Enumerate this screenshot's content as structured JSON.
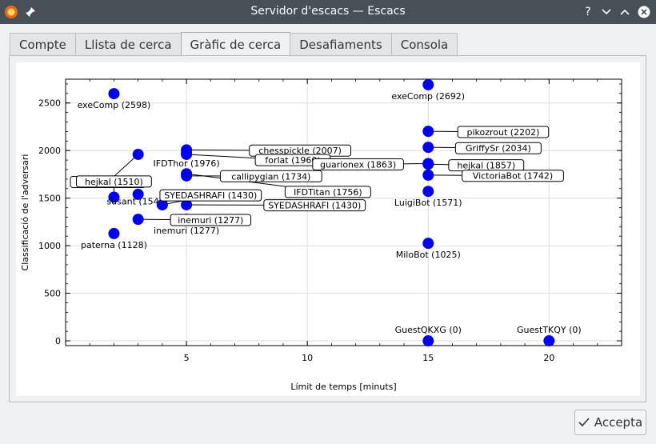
{
  "window": {
    "title": "Servidor d'escacs — Escacs",
    "app_icon": "firefox-style-app-icon",
    "pin_icon": "pin-icon",
    "help_label": "?",
    "minimize_glyph": "⌄",
    "maximize_glyph": "⌃",
    "close_glyph": "✕"
  },
  "tabs": [
    {
      "label": "Compte",
      "active": false
    },
    {
      "label": "Llista de cerca",
      "active": false
    },
    {
      "label": "Gràfic de cerca",
      "active": true
    },
    {
      "label": "Desafiaments",
      "active": false
    },
    {
      "label": "Consola",
      "active": false
    }
  ],
  "chart_data": {
    "type": "scatter",
    "xlabel": "Límit de temps [minuts]",
    "ylabel": "Classificació de l'adversari",
    "xlim": [
      0,
      23
    ],
    "ylim": [
      -50,
      2750
    ],
    "xticks": [
      5,
      10,
      15,
      20
    ],
    "yticks": [
      0,
      500,
      1000,
      1500,
      2000,
      2500
    ],
    "grid": true,
    "point_color": "#0000ee",
    "points": [
      {
        "name": "exeComp (2598)",
        "x": 2,
        "y": 2598,
        "label_mode": "plain",
        "label_pos": "below"
      },
      {
        "name": "forlat (1960)",
        "x": 3,
        "y": 1960,
        "label_mode": "box",
        "lx": 1.75,
        "ly": 1670
      },
      {
        "name": "hejkal (1510)",
        "x": 2,
        "y": 1510,
        "label_mode": "box",
        "lx": 2,
        "ly": 1675
      },
      {
        "name": "susant (1540)",
        "x": 3,
        "y": 1540,
        "label_mode": "plain_clip",
        "lx": 2,
        "ly": 1435
      },
      {
        "name": "paterna (1128)",
        "x": 2,
        "y": 1128,
        "label_mode": "plain",
        "label_pos": "below"
      },
      {
        "name": "SYEDASHRAFI (1430)",
        "x": 4,
        "y": 1430,
        "label_mode": "box",
        "lx": 6,
        "ly": 1530
      },
      {
        "name": "inemuri (1277)",
        "x": 3,
        "y": 1277,
        "label_mode": "box",
        "lx": 6,
        "ly": 1270
      },
      {
        "name": "chesspickle (2007)",
        "x": 5,
        "y": 2007,
        "label_mode": "box",
        "lx": 9.7,
        "ly": 2000
      },
      {
        "name": "forlat (1960)",
        "x": 5,
        "y": 1960,
        "label_mode": "box",
        "lx": 9.4,
        "ly": 1900
      },
      {
        "name": "IFDThor (1976)",
        "x": 5,
        "y": 1976,
        "label_mode": "plain",
        "lx": 5,
        "ly": 1835
      },
      {
        "name": "callipygian (1734)",
        "x": 5,
        "y": 1734,
        "label_mode": "box",
        "lx": 8.5,
        "ly": 1730
      },
      {
        "name": "IFDTitan (1756)",
        "x": 5,
        "y": 1756,
        "label_mode": "box",
        "lx": 10.85,
        "ly": 1565
      },
      {
        "name": "SYEDASHRAFI (1430)",
        "x": 5,
        "y": 1430,
        "label_mode": "box",
        "lx": 10.3,
        "ly": 1425
      },
      {
        "name": "inemuri (1277)",
        "x": 5,
        "y": 1277,
        "label_mode": "plain",
        "label_pos": "below"
      },
      {
        "name": "exeComp (2692)",
        "x": 15,
        "y": 2692,
        "label_mode": "plain",
        "label_pos": "below"
      },
      {
        "name": "pikozrout (2202)",
        "x": 15,
        "y": 2202,
        "label_mode": "box",
        "lx": 18.1,
        "ly": 2195
      },
      {
        "name": "GriffySr (2034)",
        "x": 15,
        "y": 2034,
        "label_mode": "box",
        "lx": 17.9,
        "ly": 2025
      },
      {
        "name": "guarionex (1863)",
        "x": 15,
        "y": 1863,
        "label_mode": "box",
        "lx": 12.1,
        "ly": 1855
      },
      {
        "name": "hejkal (1857)",
        "x": 15,
        "y": 1857,
        "label_mode": "box",
        "lx": 17.4,
        "ly": 1845
      },
      {
        "name": "VictoriaBot (1742)",
        "x": 15,
        "y": 1742,
        "label_mode": "box",
        "lx": 18.5,
        "ly": 1735
      },
      {
        "name": "LuigiBot (1571)",
        "x": 15,
        "y": 1571,
        "label_mode": "plain",
        "label_pos": "below"
      },
      {
        "name": "MiloBot (1025)",
        "x": 15,
        "y": 1025,
        "label_mode": "plain",
        "label_pos": "below"
      },
      {
        "name": "GuestQKXG (0)",
        "x": 15,
        "y": 0,
        "label_mode": "plain",
        "label_pos": "above"
      },
      {
        "name": "GuestTKQY (0)",
        "x": 20,
        "y": 0,
        "label_mode": "plain",
        "label_pos": "above"
      }
    ]
  },
  "footer": {
    "accept_label": "Accepta",
    "accept_icon": "checkmark-icon"
  }
}
